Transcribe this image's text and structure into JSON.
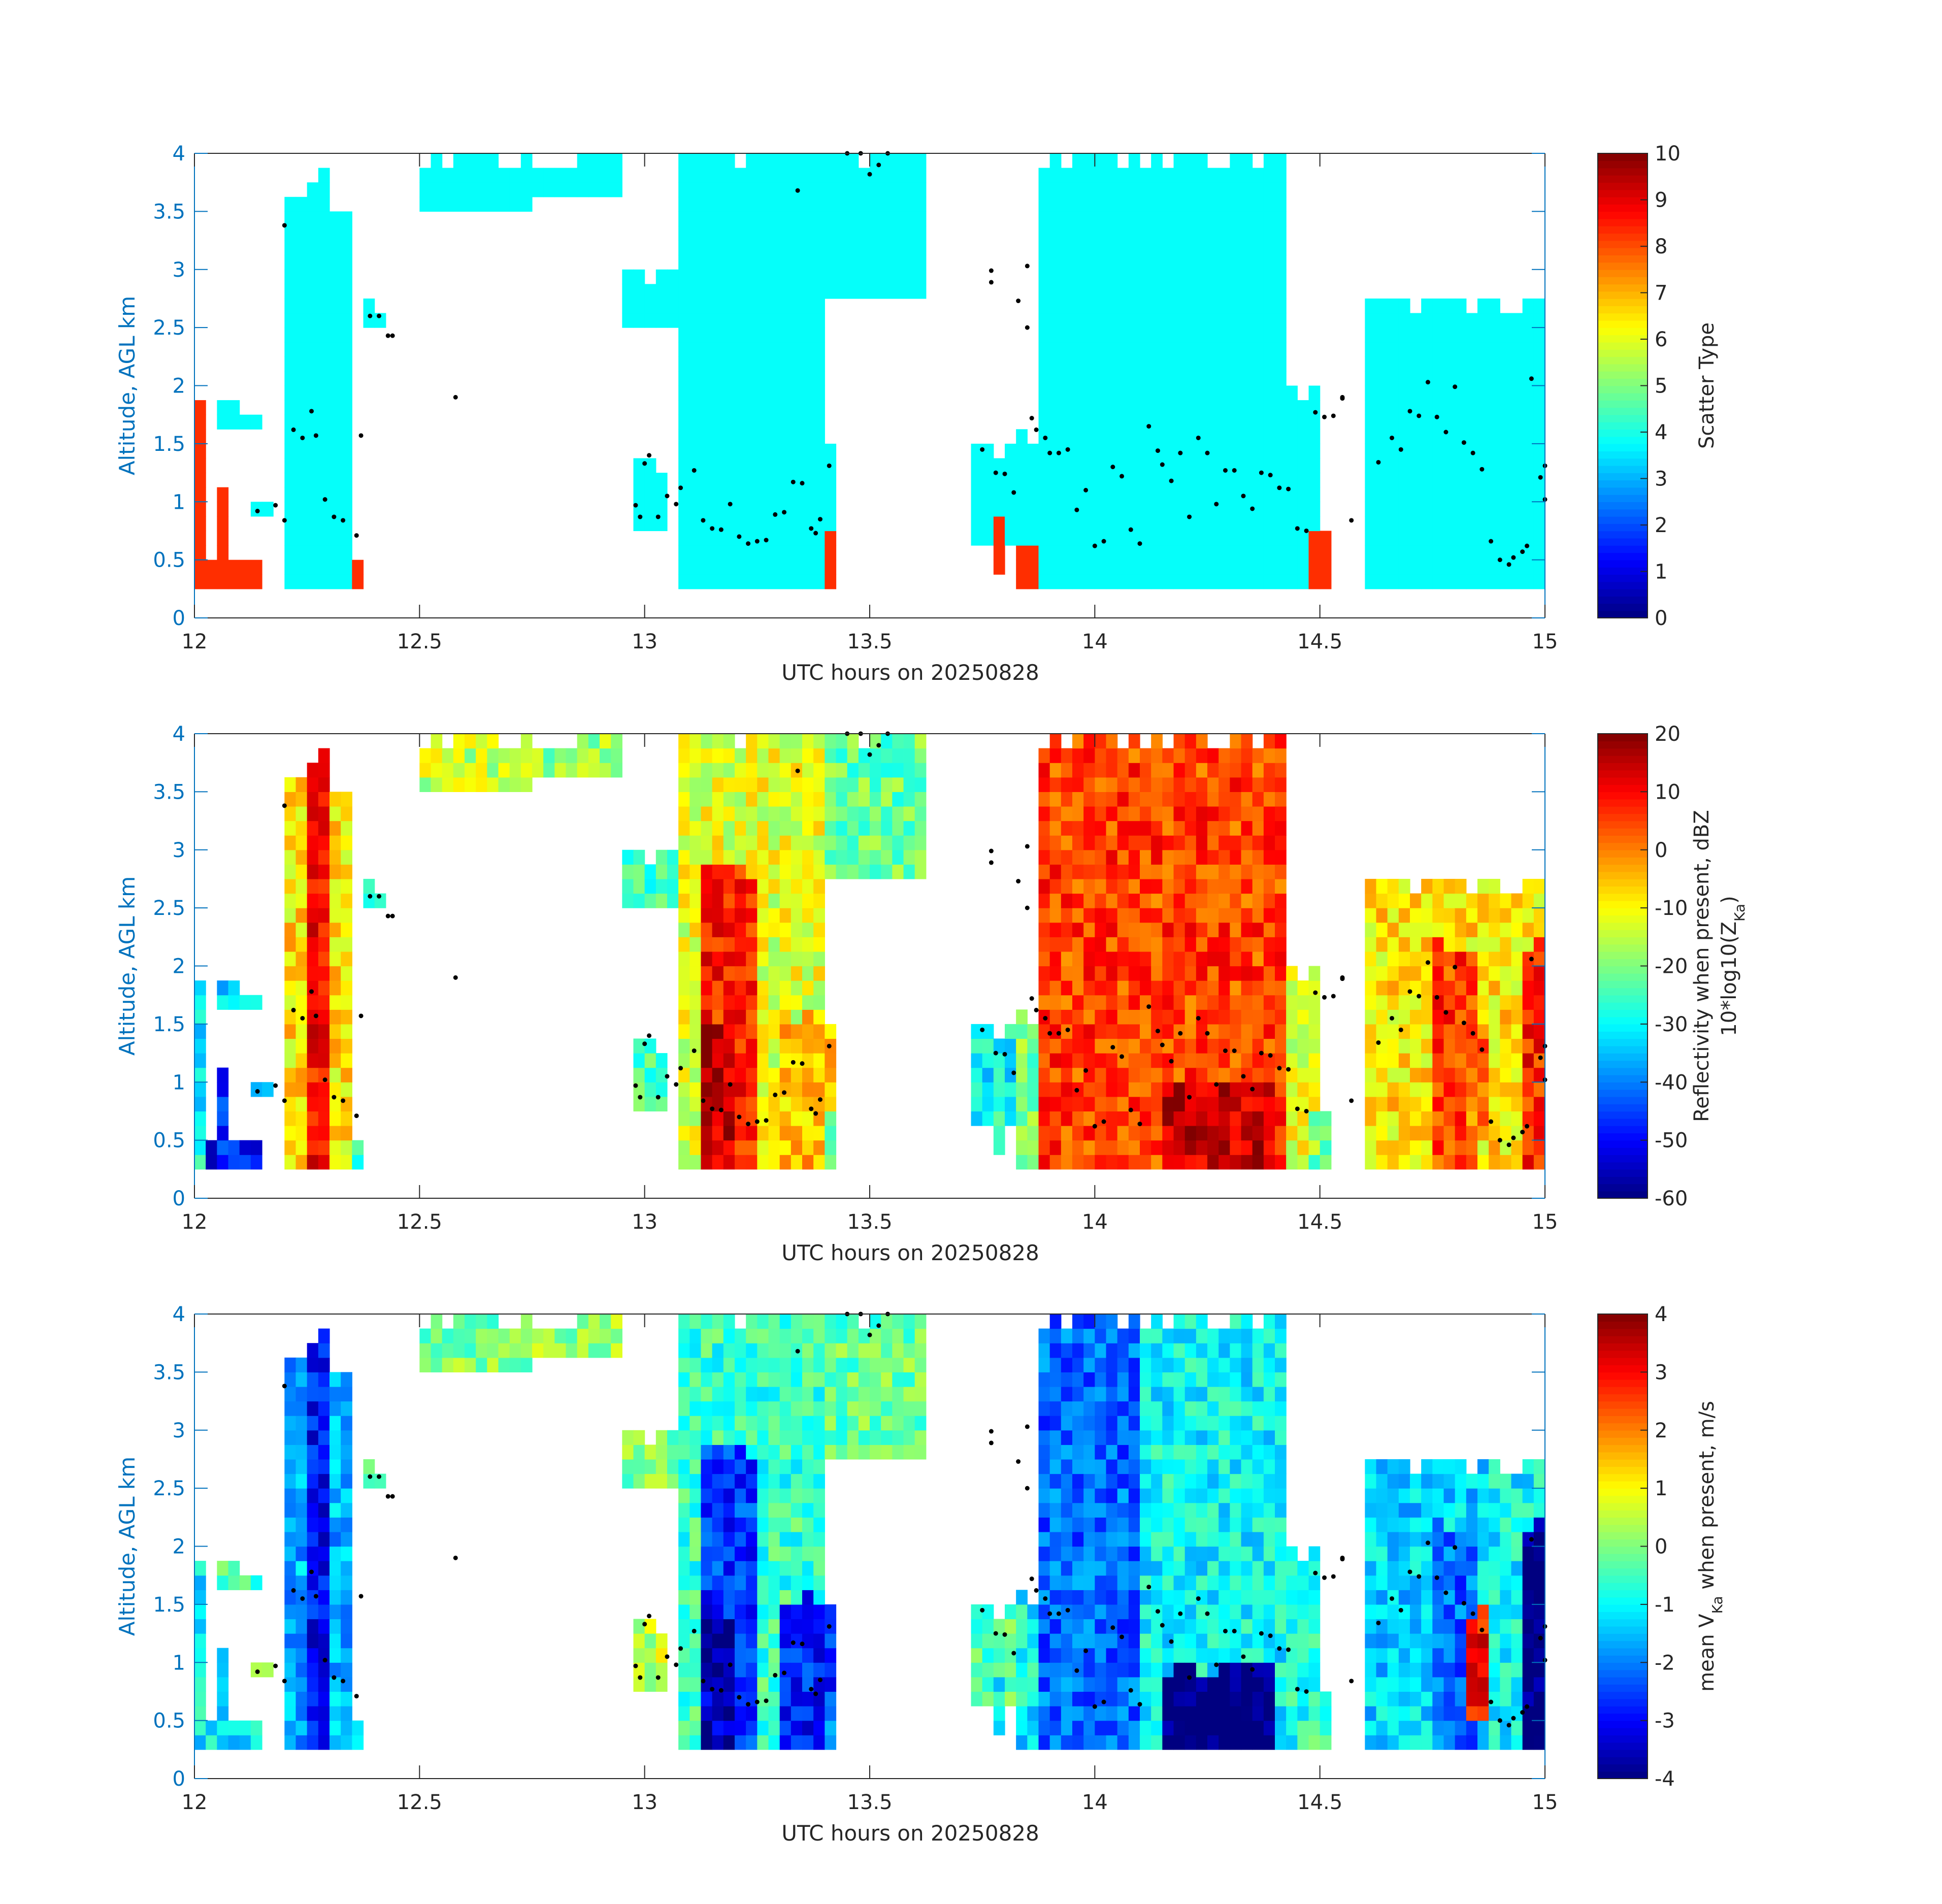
{
  "chart_data": [
    {
      "type": "heatmap",
      "id": "scatter-type",
      "xlabel": "UTC hours on 20250828",
      "ylabel": "Altitude, AGL km",
      "xlim": [
        12,
        15
      ],
      "ylim": [
        0,
        4
      ],
      "xticks": [
        "12",
        "12.5",
        "13",
        "13.5",
        "14",
        "14.5",
        "15"
      ],
      "yticks": [
        "0",
        "0.5",
        "1",
        "1.5",
        "2",
        "2.5",
        "3",
        "3.5",
        "4"
      ],
      "colorbar": {
        "label": "Scatter Type",
        "range": [
          0,
          10
        ],
        "ticks": [
          "0",
          "1",
          "2",
          "3",
          "4",
          "5",
          "6",
          "7",
          "8",
          "9",
          "10"
        ]
      },
      "colormap": "jet",
      "field": "scatter",
      "cell_values": {
        "cloud": 3.8,
        "precip": 8.3
      }
    },
    {
      "type": "heatmap",
      "id": "reflectivity",
      "xlabel": "UTC hours on 20250828",
      "ylabel": "Altitude, AGL km",
      "xlim": [
        12,
        15
      ],
      "ylim": [
        0,
        4
      ],
      "xticks": [
        "12",
        "12.5",
        "13",
        "13.5",
        "14",
        "14.5",
        "15"
      ],
      "yticks": [
        "0",
        "0.5",
        "1",
        "1.5",
        "2",
        "2.5",
        "3",
        "3.5",
        "4"
      ],
      "colorbar": {
        "label_line1": "Reflectivity when present, dBZ",
        "label_line2_prefix": "10*log10(Z",
        "label_line2_sub": "Ka",
        "label_line2_suffix": ")",
        "range": [
          -60,
          20
        ],
        "ticks": [
          "-60",
          "-50",
          "-40",
          "-30",
          "-20",
          "-10",
          "0",
          "10",
          "20"
        ]
      },
      "colormap": "jet",
      "field": "reflectivity"
    },
    {
      "type": "heatmap",
      "id": "doppler-velocity",
      "xlabel": "UTC hours on 20250828",
      "ylabel": "Altitude, AGL km",
      "xlim": [
        12,
        15
      ],
      "ylim": [
        0,
        4
      ],
      "xticks": [
        "12",
        "12.5",
        "13",
        "13.5",
        "14",
        "14.5",
        "15"
      ],
      "yticks": [
        "0",
        "0.5",
        "1",
        "1.5",
        "2",
        "2.5",
        "3",
        "3.5",
        "4"
      ],
      "colorbar": {
        "label_prefix": "mean V",
        "label_sub": "Ka",
        "label_suffix": " when present, m/s",
        "range": [
          -4,
          4
        ],
        "ticks": [
          "-4",
          "-3",
          "-2",
          "-1",
          "0",
          "1",
          "2",
          "3",
          "4"
        ]
      },
      "colormap": "jet",
      "field": "velocity"
    }
  ],
  "echo_blocks": [
    {
      "x0": 12.0,
      "x1": 12.02,
      "ybot": 0.2,
      "ytop": 2.0,
      "dbz": -30,
      "vel": -1.0,
      "precip": true
    },
    {
      "x0": 12.02,
      "x1": 12.15,
      "ybot": 0.2,
      "ytop": 0.6,
      "dbz": -50,
      "vel": -1.2,
      "precip": true
    },
    {
      "x0": 12.05,
      "x1": 12.07,
      "ybot": 0.2,
      "ytop": 1.3,
      "dbz": -45,
      "vel": -1.2,
      "precip": true
    },
    {
      "x0": 12.05,
      "x1": 12.15,
      "ybot": 1.6,
      "ytop": 1.85,
      "dbz": -35,
      "vel": -0.5,
      "precip": false
    },
    {
      "x0": 12.12,
      "x1": 12.18,
      "ybot": 0.85,
      "ytop": 1.1,
      "dbz": -40,
      "vel": 0.3,
      "precip": false
    },
    {
      "x0": 12.2,
      "x1": 12.36,
      "ybot": 0.2,
      "ytop": 3.6,
      "dbz": -8,
      "vel": -1.6,
      "precip": false
    },
    {
      "x0": 12.26,
      "x1": 12.31,
      "ybot": 0.25,
      "ytop": 3.9,
      "dbz": 9,
      "vel": -3.0,
      "precip": false
    },
    {
      "x0": 12.36,
      "x1": 12.38,
      "ybot": 0.2,
      "ytop": 0.65,
      "dbz": -25,
      "vel": -1.5,
      "precip": true
    },
    {
      "x0": 12.37,
      "x1": 12.43,
      "ybot": 2.45,
      "ytop": 2.75,
      "dbz": -30,
      "vel": -0.2,
      "precip": false
    },
    {
      "x0": 12.5,
      "x1": 12.75,
      "ybot": 3.5,
      "ytop": 4.0,
      "dbz": -15,
      "vel": 0.0,
      "precip": false
    },
    {
      "x0": 12.75,
      "x1": 12.95,
      "ybot": 3.6,
      "ytop": 4.0,
      "dbz": -18,
      "vel": 0.1,
      "precip": false
    },
    {
      "x0": 12.95,
      "x1": 13.1,
      "ybot": 2.5,
      "ytop": 3.0,
      "dbz": -25,
      "vel": -0.1,
      "precip": false
    },
    {
      "x0": 12.98,
      "x1": 13.06,
      "ybot": 0.8,
      "ytop": 1.4,
      "dbz": -25,
      "vel": 0.5,
      "precip": false
    },
    {
      "x0": 13.08,
      "x1": 13.4,
      "ybot": 0.2,
      "ytop": 4.0,
      "dbz": -12,
      "vel": -0.6,
      "precip": false
    },
    {
      "x0": 13.12,
      "x1": 13.24,
      "ybot": 0.2,
      "ytop": 2.9,
      "dbz": 8,
      "vel": -2.6,
      "precip": false
    },
    {
      "x0": 13.13,
      "x1": 13.2,
      "ybot": 0.2,
      "ytop": 1.5,
      "dbz": 15,
      "vel": -3.5,
      "precip": false
    },
    {
      "x0": 13.3,
      "x1": 13.42,
      "ybot": 0.2,
      "ytop": 1.6,
      "dbz": -5,
      "vel": -2.8,
      "precip": false
    },
    {
      "x0": 13.4,
      "x1": 13.42,
      "ybot": 0.2,
      "ytop": 0.9,
      "dbz": -20,
      "vel": -2.0,
      "precip": true
    },
    {
      "x0": 13.4,
      "x1": 13.62,
      "ybot": 2.7,
      "ytop": 4.0,
      "dbz": -22,
      "vel": -0.2,
      "precip": false
    },
    {
      "x0": 13.73,
      "x1": 13.82,
      "ybot": 0.6,
      "ytop": 1.5,
      "dbz": -30,
      "vel": -0.3,
      "precip": false
    },
    {
      "x0": 13.78,
      "x1": 13.81,
      "ybot": 0.4,
      "ytop": 0.9,
      "dbz": -25,
      "vel": -1.0,
      "precip": true
    },
    {
      "x0": 13.82,
      "x1": 13.87,
      "ybot": 0.2,
      "ytop": 1.1,
      "dbz": -20,
      "vel": -1.5,
      "precip": true
    },
    {
      "x0": 13.83,
      "x1": 13.88,
      "ybot": 0.6,
      "ytop": 1.6,
      "dbz": -20,
      "vel": -1.0,
      "precip": false
    },
    {
      "x0": 13.87,
      "x1": 14.1,
      "ybot": 0.2,
      "ytop": 4.0,
      "dbz": 5,
      "vel": -2.2,
      "precip": false
    },
    {
      "x0": 14.1,
      "x1": 14.42,
      "ybot": 0.2,
      "ytop": 4.0,
      "dbz": 5,
      "vel": -1.0,
      "precip": false
    },
    {
      "x0": 14.16,
      "x1": 14.4,
      "ybot": 0.2,
      "ytop": 1.0,
      "dbz": 14,
      "vel": -4.0,
      "precip": false
    },
    {
      "x0": 14.42,
      "x1": 14.5,
      "ybot": 0.2,
      "ytop": 2.0,
      "dbz": -12,
      "vel": -0.8,
      "precip": false
    },
    {
      "x0": 14.48,
      "x1": 14.52,
      "ybot": 0.2,
      "ytop": 0.8,
      "dbz": -20,
      "vel": -0.5,
      "precip": true
    },
    {
      "x0": 14.6,
      "x1": 14.88,
      "ybot": 0.2,
      "ytop": 2.8,
      "dbz": -8,
      "vel": -1.3,
      "precip": false
    },
    {
      "x0": 14.75,
      "x1": 14.85,
      "ybot": 0.3,
      "ytop": 2.3,
      "dbz": 6,
      "vel": -2.2,
      "precip": false
    },
    {
      "x0": 14.82,
      "x1": 14.87,
      "ybot": 0.5,
      "ytop": 1.5,
      "dbz": 2,
      "vel": 3.0,
      "precip": false
    },
    {
      "x0": 14.88,
      "x1": 15.0,
      "ybot": 0.2,
      "ytop": 2.7,
      "dbz": -8,
      "vel": -1.0,
      "precip": false
    },
    {
      "x0": 14.96,
      "x1": 15.0,
      "ybot": 0.2,
      "ytop": 2.2,
      "dbz": 8,
      "vel": -4.0,
      "precip": false
    }
  ],
  "black_dots": [
    [
      12.2,
      3.38
    ],
    [
      12.22,
      1.62
    ],
    [
      12.24,
      1.55
    ],
    [
      12.26,
      1.78
    ],
    [
      12.27,
      1.57
    ],
    [
      12.29,
      1.02
    ],
    [
      12.31,
      0.87
    ],
    [
      12.33,
      0.84
    ],
    [
      12.36,
      0.71
    ],
    [
      12.37,
      1.57
    ],
    [
      12.39,
      2.6
    ],
    [
      12.41,
      2.6
    ],
    [
      12.43,
      2.43
    ],
    [
      12.44,
      2.43
    ],
    [
      12.58,
      1.9
    ],
    [
      12.2,
      0.84
    ],
    [
      12.14,
      0.92
    ],
    [
      12.18,
      0.97
    ],
    [
      12.98,
      0.97
    ],
    [
      12.99,
      0.87
    ],
    [
      13.0,
      1.33
    ],
    [
      13.01,
      1.4
    ],
    [
      13.03,
      0.87
    ],
    [
      13.05,
      1.05
    ],
    [
      13.07,
      0.98
    ],
    [
      13.08,
      1.12
    ],
    [
      13.11,
      1.27
    ],
    [
      13.13,
      0.84
    ],
    [
      13.15,
      0.77
    ],
    [
      13.17,
      0.76
    ],
    [
      13.19,
      0.98
    ],
    [
      13.21,
      0.7
    ],
    [
      13.23,
      0.64
    ],
    [
      13.25,
      0.66
    ],
    [
      13.27,
      0.67
    ],
    [
      13.29,
      0.89
    ],
    [
      13.31,
      0.91
    ],
    [
      13.33,
      1.17
    ],
    [
      13.35,
      1.16
    ],
    [
      13.37,
      0.77
    ],
    [
      13.38,
      0.73
    ],
    [
      13.39,
      0.85
    ],
    [
      13.41,
      1.31
    ],
    [
      13.34,
      3.68
    ],
    [
      13.45,
      4.0
    ],
    [
      13.48,
      4.0
    ],
    [
      13.5,
      3.82
    ],
    [
      13.52,
      3.9
    ],
    [
      13.54,
      4.0
    ],
    [
      13.75,
      1.45
    ],
    [
      13.77,
      2.99
    ],
    [
      13.77,
      2.89
    ],
    [
      13.78,
      1.25
    ],
    [
      13.8,
      1.24
    ],
    [
      13.82,
      1.08
    ],
    [
      13.83,
      2.73
    ],
    [
      13.85,
      3.03
    ],
    [
      13.85,
      2.5
    ],
    [
      13.86,
      1.72
    ],
    [
      13.87,
      1.62
    ],
    [
      13.89,
      1.55
    ],
    [
      13.9,
      1.42
    ],
    [
      13.92,
      1.42
    ],
    [
      13.94,
      1.45
    ],
    [
      13.96,
      0.93
    ],
    [
      13.98,
      1.1
    ],
    [
      14.0,
      0.62
    ],
    [
      14.02,
      0.66
    ],
    [
      14.04,
      1.3
    ],
    [
      14.06,
      1.22
    ],
    [
      14.08,
      0.76
    ],
    [
      14.1,
      0.64
    ],
    [
      14.12,
      1.65
    ],
    [
      14.14,
      1.44
    ],
    [
      14.15,
      1.32
    ],
    [
      14.17,
      1.18
    ],
    [
      14.19,
      1.42
    ],
    [
      14.21,
      0.87
    ],
    [
      14.23,
      1.55
    ],
    [
      14.25,
      1.42
    ],
    [
      14.27,
      0.98
    ],
    [
      14.29,
      1.27
    ],
    [
      14.31,
      1.27
    ],
    [
      14.33,
      1.05
    ],
    [
      14.35,
      0.94
    ],
    [
      14.37,
      1.25
    ],
    [
      14.39,
      1.23
    ],
    [
      14.41,
      1.12
    ],
    [
      14.43,
      1.11
    ],
    [
      14.45,
      0.77
    ],
    [
      14.47,
      0.75
    ],
    [
      14.49,
      1.77
    ],
    [
      14.51,
      1.73
    ],
    [
      14.53,
      1.74
    ],
    [
      14.55,
      1.89
    ],
    [
      14.55,
      1.9
    ],
    [
      14.57,
      0.84
    ],
    [
      14.63,
      1.34
    ],
    [
      14.66,
      1.55
    ],
    [
      14.68,
      1.45
    ],
    [
      14.7,
      1.78
    ],
    [
      14.72,
      1.74
    ],
    [
      14.74,
      2.03
    ],
    [
      14.76,
      1.73
    ],
    [
      14.78,
      1.6
    ],
    [
      14.8,
      1.99
    ],
    [
      14.82,
      1.51
    ],
    [
      14.84,
      1.42
    ],
    [
      14.86,
      1.28
    ],
    [
      14.88,
      0.66
    ],
    [
      14.9,
      0.5
    ],
    [
      14.92,
      0.46
    ],
    [
      14.93,
      0.52
    ],
    [
      14.95,
      0.57
    ],
    [
      14.96,
      0.62
    ],
    [
      14.97,
      2.06
    ],
    [
      14.99,
      1.21
    ],
    [
      15.0,
      1.02
    ],
    [
      15.0,
      1.31
    ]
  ]
}
